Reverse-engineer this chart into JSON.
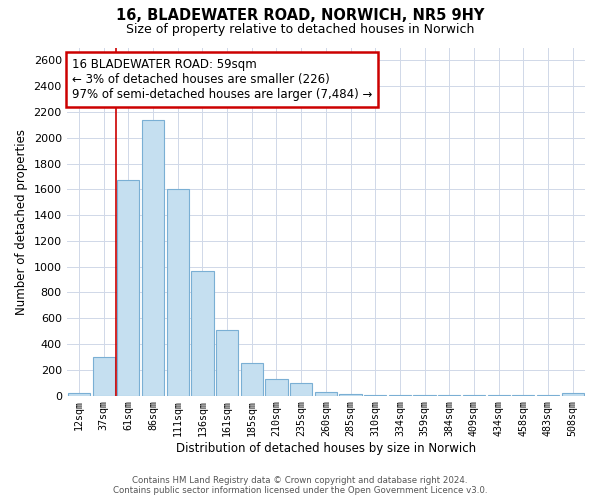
{
  "title": "16, BLADEWATER ROAD, NORWICH, NR5 9HY",
  "subtitle": "Size of property relative to detached houses in Norwich",
  "xlabel": "Distribution of detached houses by size in Norwich",
  "ylabel": "Number of detached properties",
  "bar_labels": [
    "12sqm",
    "37sqm",
    "61sqm",
    "86sqm",
    "111sqm",
    "136sqm",
    "161sqm",
    "185sqm",
    "210sqm",
    "235sqm",
    "260sqm",
    "285sqm",
    "310sqm",
    "334sqm",
    "359sqm",
    "384sqm",
    "409sqm",
    "434sqm",
    "458sqm",
    "483sqm",
    "508sqm"
  ],
  "bar_values": [
    18,
    300,
    1670,
    2140,
    1600,
    970,
    510,
    255,
    125,
    95,
    30,
    10,
    5,
    3,
    3,
    3,
    3,
    3,
    3,
    3,
    18
  ],
  "bar_color": "#c5dff0",
  "bar_edge_color": "#7aafd4",
  "annotation_box_text": "16 BLADEWATER ROAD: 59sqm\n← 3% of detached houses are smaller (226)\n97% of semi-detached houses are larger (7,484) →",
  "annotation_box_edge_color": "#cc0000",
  "vertical_line_color": "#cc0000",
  "ylim": [
    0,
    2700
  ],
  "yticks": [
    0,
    200,
    400,
    600,
    800,
    1000,
    1200,
    1400,
    1600,
    1800,
    2000,
    2200,
    2400,
    2600
  ],
  "footer_line1": "Contains HM Land Registry data © Crown copyright and database right 2024.",
  "footer_line2": "Contains public sector information licensed under the Open Government Licence v3.0.",
  "background_color": "#ffffff",
  "grid_color": "#d0d8e8"
}
